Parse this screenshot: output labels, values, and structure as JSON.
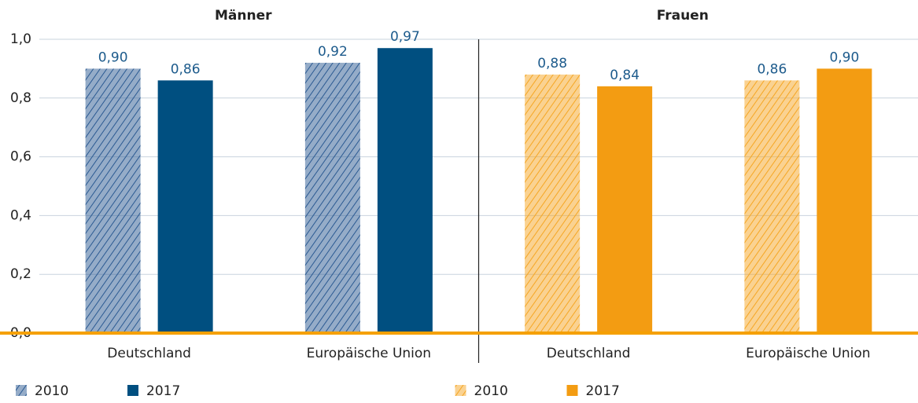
{
  "chart_data": [
    {
      "type": "bar",
      "title": "Männer",
      "categories": [
        "Deutschland",
        "Europäische Union"
      ],
      "series": [
        {
          "name": "2010",
          "color": "#2b5a92",
          "pattern": "hatch",
          "values": [
            0.9,
            0.92
          ],
          "value_labels": [
            "0,90",
            "0,92"
          ]
        },
        {
          "name": "2017",
          "color": "#004f80",
          "values": [
            0.86,
            0.97
          ],
          "value_labels": [
            "0,86",
            "0,97"
          ]
        }
      ],
      "ylim": [
        0,
        1.0
      ],
      "yticks": [
        {
          "value": 0,
          "label": "0,0"
        },
        {
          "value": 0.2,
          "label": "0,2"
        },
        {
          "value": 0.4,
          "label": "0,4"
        },
        {
          "value": 0.6,
          "label": "0,6"
        },
        {
          "value": 0.8,
          "label": "0,8"
        },
        {
          "value": 1.0,
          "label": "1,0"
        }
      ],
      "grid": true
    },
    {
      "type": "bar",
      "title": "Frauen",
      "categories": [
        "Deutschland",
        "Europäische Union"
      ],
      "series": [
        {
          "name": "2010",
          "color": "#f5a623",
          "pattern": "hatch",
          "values": [
            0.88,
            0.86
          ],
          "value_labels": [
            "0,88",
            "0,86"
          ]
        },
        {
          "name": "2017",
          "color": "#f39c12",
          "values": [
            0.84,
            0.9
          ],
          "value_labels": [
            "0,84",
            "0,90"
          ]
        }
      ]
    }
  ]
}
